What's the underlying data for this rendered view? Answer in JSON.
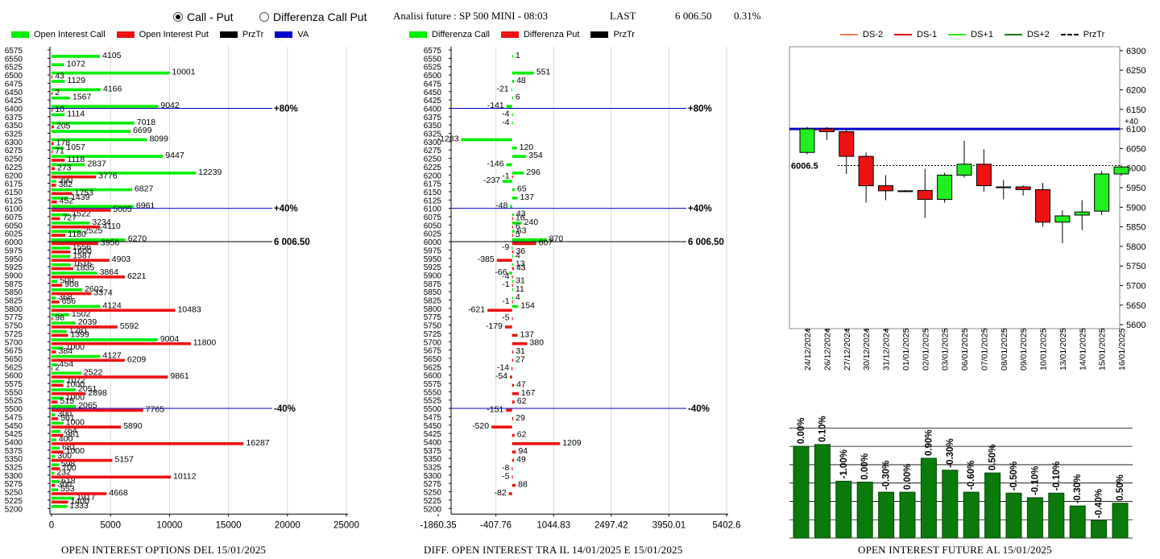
{
  "header": {
    "radio_call_put": "Call - Put",
    "radio_diff_call_put": "Differenza Call Put",
    "selected": "call_put",
    "analysis_label": "Analisi future : SP 500 MINI - 08:03",
    "last_label": "LAST",
    "last_value": "6 006.50",
    "last_change": "0.31%"
  },
  "legends": {
    "oi": [
      {
        "label": "Open Interest Call",
        "color": "#00ee00",
        "kind": "box"
      },
      {
        "label": "Open Interest Put",
        "color": "#ee1111",
        "kind": "box"
      },
      {
        "label": "PrzTr",
        "color": "#000000",
        "kind": "box"
      },
      {
        "label": "VA",
        "color": "#0000cc",
        "kind": "box"
      }
    ],
    "diff": [
      {
        "label": "Differenza Call",
        "color": "#00ee00",
        "kind": "box"
      },
      {
        "label": "Differenza Put",
        "color": "#ee1111",
        "kind": "box"
      },
      {
        "label": "PrzTr",
        "color": "#000000",
        "kind": "box"
      }
    ],
    "future": [
      {
        "label": "DS-2",
        "color": "#f08050",
        "kind": "line"
      },
      {
        "label": "DS-1",
        "color": "#dd0000",
        "kind": "line"
      },
      {
        "label": "DS+1",
        "color": "#22ee22",
        "kind": "line"
      },
      {
        "label": "DS+2",
        "color": "#007700",
        "kind": "line"
      },
      {
        "label": "PrzTr",
        "color": "#000000",
        "kind": "dash"
      }
    ]
  },
  "chart_data": [
    {
      "type": "bar",
      "orientation": "horizontal",
      "caption": "OPEN INTEREST OPTIONS DEL 15/01/2025",
      "strikes": [
        6575,
        6550,
        6525,
        6500,
        6475,
        6450,
        6425,
        6400,
        6375,
        6350,
        6325,
        6300,
        6275,
        6250,
        6225,
        6200,
        6175,
        6150,
        6125,
        6100,
        6075,
        6050,
        6025,
        6000,
        5975,
        5950,
        5925,
        5900,
        5875,
        5850,
        5825,
        5800,
        5775,
        5750,
        5725,
        5700,
        5675,
        5650,
        5625,
        5600,
        5575,
        5550,
        5525,
        5500,
        5475,
        5450,
        5425,
        5400,
        5375,
        5350,
        5325,
        5300,
        5275,
        5250,
        5225,
        5200
      ],
      "series": [
        {
          "name": "Open Interest Call",
          "values": [
            null,
            4105,
            1072,
            10001,
            1129,
            4166,
            1567,
            9042,
            1114,
            7018,
            6699,
            8099,
            1057,
            9447,
            2837,
            12239,
            390,
            6827,
            1439,
            6961,
            1522,
            3234,
            2525,
            6270,
            1556,
            1587,
            1616,
            3864,
            500,
            2602,
            368,
            4124,
            1502,
            2039,
            1281,
            9004,
            1000,
            4127,
            454,
            2522,
            1072,
            2051,
            1000,
            2065,
            300,
            1000,
            764,
            400,
            681,
            300,
            598,
            232,
            618,
            553,
            1917,
            1333
          ]
        },
        {
          "name": "Open Interest Put",
          "values": [
            null,
            null,
            null,
            43,
            null,
            2,
            null,
            10,
            null,
            205,
            null,
            178,
            71,
            1118,
            273,
            3776,
            382,
            1753,
            452,
            5005,
            727,
            4110,
            1180,
            3956,
            1600,
            4903,
            1835,
            6221,
            908,
            3374,
            656,
            10483,
            98,
            5592,
            1399,
            11800,
            384,
            6209,
            2,
            9861,
            1000,
            2898,
            515,
            7765,
            561,
            5890,
            981,
            16287,
            1000,
            5157,
            700,
            10112,
            300,
            4668,
            1400,
            null
          ]
        }
      ],
      "axis_ticks": [
        0,
        5000,
        10000,
        15000,
        20000,
        25000
      ],
      "xlim": [
        0,
        25000
      ],
      "annotations": [
        {
          "label": "+80%",
          "strike": 6400
        },
        {
          "label": "+40%",
          "strike": 6100
        },
        {
          "label": "6 006.50",
          "strike": 6000
        },
        {
          "label": "-40%",
          "strike": 5500
        }
      ]
    },
    {
      "type": "bar",
      "orientation": "horizontal",
      "caption": "DIFF. OPEN INTEREST TRA IL 14/01/2025 E 15/01/2025",
      "strikes": [
        6575,
        6550,
        6525,
        6500,
        6475,
        6450,
        6425,
        6400,
        6375,
        6350,
        6325,
        6300,
        6275,
        6250,
        6225,
        6200,
        6175,
        6150,
        6125,
        6100,
        6075,
        6050,
        6025,
        6000,
        5975,
        5950,
        5925,
        5900,
        5875,
        5850,
        5825,
        5800,
        5775,
        5750,
        5725,
        5700,
        5675,
        5650,
        5625,
        5600,
        5575,
        5550,
        5525,
        5500,
        5475,
        5450,
        5425,
        5400,
        5375,
        5350,
        5325,
        5300,
        5275,
        5250,
        5225,
        5200
      ],
      "series": [
        {
          "name": "Differenza Call",
          "values": [
            null,
            1,
            null,
            551,
            48,
            -21,
            6,
            -141,
            -4,
            -4,
            null,
            -1283,
            120,
            354,
            -146,
            296,
            -237,
            65,
            137,
            -48,
            43,
            240,
            63,
            870,
            -9,
            4,
            13,
            -66,
            31,
            11,
            4,
            154,
            null,
            null,
            null,
            null,
            null,
            null,
            null,
            null,
            null,
            null,
            null,
            null,
            null,
            null,
            null,
            null,
            null,
            null,
            null,
            null,
            null,
            null,
            null,
            null
          ]
        },
        {
          "name": "Differenza Put",
          "values": [
            null,
            null,
            null,
            null,
            null,
            null,
            null,
            null,
            null,
            null,
            null,
            null,
            null,
            null,
            null,
            -1,
            null,
            null,
            null,
            null,
            16,
            6,
            5,
            607,
            36,
            -385,
            43,
            -4,
            -1,
            null,
            -1,
            -621,
            -5,
            -179,
            137,
            380,
            31,
            27,
            -14,
            -54,
            47,
            167,
            62,
            -151,
            29,
            -520,
            62,
            1209,
            94,
            49,
            -8,
            -5,
            88,
            -82,
            null,
            null
          ]
        }
      ],
      "axis_ticks": [
        "-1860.35",
        "-407.76",
        "1044.83",
        "2497.42",
        "3950.01",
        "5402.6"
      ],
      "xlim": [
        -1860.35,
        5402.6
      ],
      "annotations": [
        {
          "label": "+80%",
          "strike": 6400
        },
        {
          "label": "+40%",
          "strike": 6100
        },
        {
          "label": "6 006.50",
          "strike": 6000
        },
        {
          "label": "-40%",
          "strike": 5500
        }
      ]
    },
    {
      "type": "candlestick",
      "dates": [
        "24/12/2024",
        "26/12/2024",
        "27/12/2024",
        "30/12/2024",
        "31/12/2024",
        "01/01/2025",
        "02/01/2025",
        "03/01/2025",
        "06/01/2025",
        "07/01/2025",
        "08/01/2025",
        "09/01/2025",
        "10/01/2025",
        "13/01/2025",
        "14/01/2025",
        "15/01/2025",
        "16/01/2025"
      ],
      "ohlc": [
        [
          6040,
          6105,
          6035,
          6100
        ],
        [
          6100,
          6105,
          6072,
          6093
        ],
        [
          6093,
          6098,
          5985,
          6030
        ],
        [
          6030,
          6040,
          5912,
          5955
        ],
        [
          5955,
          5982,
          5918,
          5942
        ],
        [
          5942,
          5944,
          5940,
          5942
        ],
        [
          5943,
          5998,
          5873,
          5920
        ],
        [
          5920,
          5988,
          5912,
          5982
        ],
        [
          5982,
          6070,
          5976,
          6010
        ],
        [
          6010,
          6048,
          5940,
          5955
        ],
        [
          5952,
          5970,
          5920,
          5952
        ],
        [
          5952,
          5956,
          5930,
          5945
        ],
        [
          5945,
          5962,
          5850,
          5862
        ],
        [
          5862,
          5892,
          5808,
          5878
        ],
        [
          5880,
          5918,
          5842,
          5888
        ],
        [
          5890,
          5992,
          5880,
          5985
        ],
        [
          5985,
          6008,
          5980,
          6003
        ]
      ],
      "yticks": [
        5600,
        5650,
        5700,
        5750,
        5800,
        5850,
        5900,
        5950,
        6000,
        6050,
        6100,
        6150,
        6200,
        6250,
        6300
      ],
      "ylim": [
        5590,
        6310
      ],
      "level_line": {
        "value": 6100,
        "label": "+40"
      },
      "przTr": {
        "value": 6006.5,
        "label": "6006.5"
      }
    },
    {
      "type": "bar",
      "caption": "OPEN INTEREST FUTURE AL 15/01/2025",
      "labels": [
        "0.00%",
        "0.10%",
        "-1.00%",
        "0.00%",
        "-0.30%",
        "0.00%",
        "0.90%",
        "-0.30%",
        "-0.60%",
        "0.50%",
        "-0.50%",
        "-0.10%",
        "-0.10%",
        "-0.30%",
        "-0.40%",
        "0.50%"
      ],
      "values": [
        100,
        102,
        62,
        61,
        50,
        50,
        87,
        74,
        50,
        71,
        49,
        44,
        49,
        35,
        19,
        38
      ],
      "ylim": [
        0,
        130
      ]
    }
  ]
}
